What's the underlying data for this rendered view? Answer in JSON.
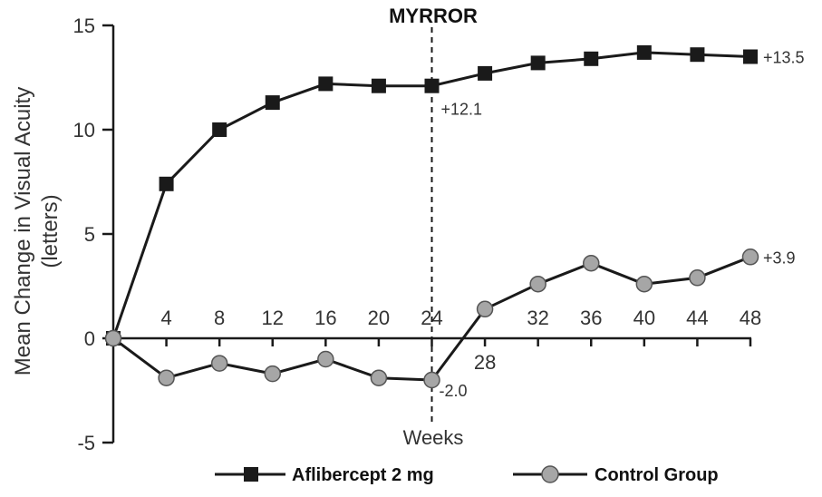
{
  "chart_data": {
    "type": "line",
    "title": "MYRROR",
    "xlabel": "Weeks",
    "ylabel": "Mean Change in Visual Acuity\n(letters)",
    "ylabel_line1": "Mean Change in Visual Acuity",
    "ylabel_line2": "(letters)",
    "x": [
      0,
      4,
      8,
      12,
      16,
      20,
      24,
      28,
      32,
      36,
      40,
      44,
      48
    ],
    "x_ticks": [
      4,
      8,
      12,
      16,
      20,
      24,
      28,
      32,
      36,
      40,
      44,
      48
    ],
    "x_tick_labels": [
      "4",
      "8",
      "12",
      "16",
      "20",
      "24",
      "28",
      "32",
      "36",
      "40",
      "44",
      "48"
    ],
    "y_ticks": [
      -5,
      0,
      5,
      10,
      15
    ],
    "y_tick_labels": [
      "-5",
      "0",
      "5",
      "10",
      "15"
    ],
    "xlim": [
      0,
      48
    ],
    "ylim": [
      -5,
      15
    ],
    "grid": false,
    "legend_position": "bottom",
    "reference_line": {
      "x": 24,
      "style": "dashed"
    },
    "series": [
      {
        "name": "Aflibercept 2 mg",
        "marker": "square",
        "color": "#1a1a1a",
        "values": [
          0,
          7.4,
          10.0,
          11.3,
          12.2,
          12.1,
          12.1,
          12.7,
          13.2,
          13.4,
          13.7,
          13.6,
          13.5
        ]
      },
      {
        "name": "Control Group",
        "marker": "circle",
        "color": "#a6a6a6",
        "values": [
          0,
          -1.9,
          -1.2,
          -1.7,
          -1.0,
          -1.9,
          -2.0,
          1.4,
          2.6,
          3.6,
          2.6,
          2.9,
          3.9
        ]
      }
    ],
    "annotations": [
      {
        "text": "+12.1",
        "x": 24,
        "y": 12.1,
        "series": 0
      },
      {
        "text": "+13.5",
        "x": 48,
        "y": 13.5,
        "series": 0
      },
      {
        "text": "-2.0",
        "x": 24,
        "y": -2.0,
        "series": 1
      },
      {
        "text": "+3.9",
        "x": 48,
        "y": 3.9,
        "series": 1
      }
    ]
  }
}
